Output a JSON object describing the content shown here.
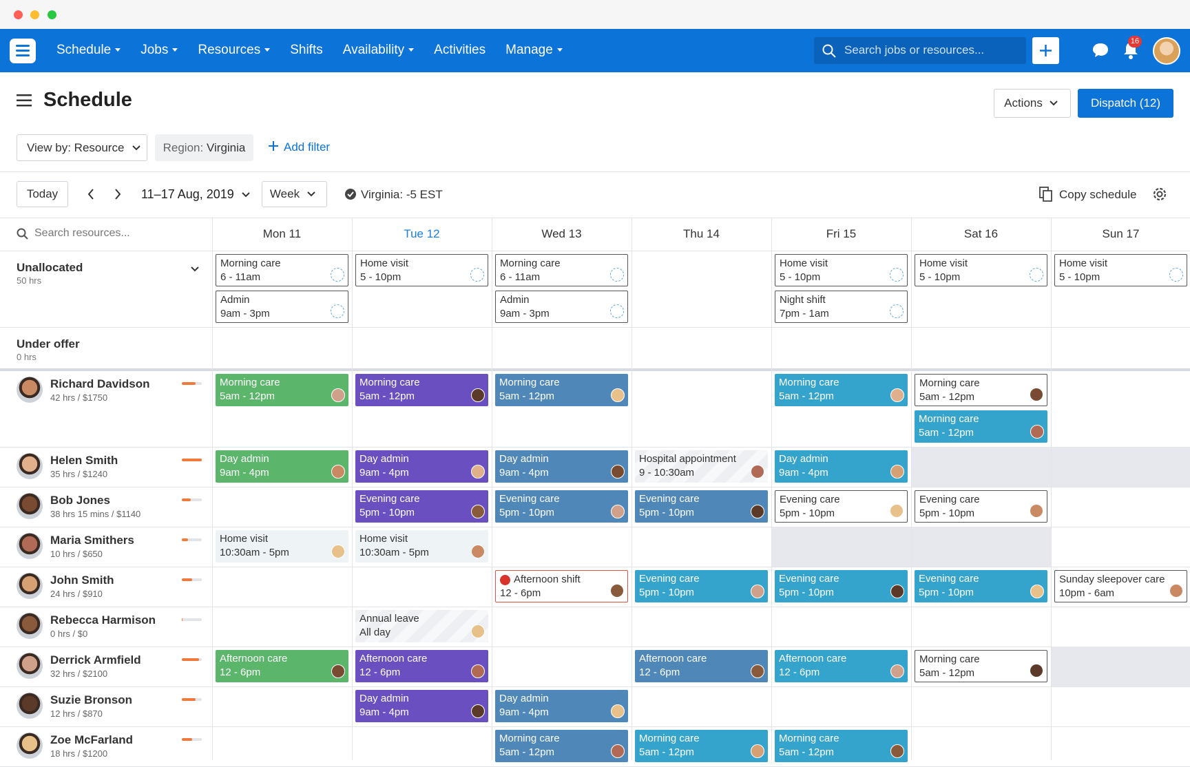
{
  "nav": {
    "items": [
      {
        "label": "Schedule",
        "dropdown": true
      },
      {
        "label": "Jobs",
        "dropdown": true
      },
      {
        "label": "Resources",
        "dropdown": true
      },
      {
        "label": "Shifts",
        "dropdown": false
      },
      {
        "label": "Availability",
        "dropdown": true
      },
      {
        "label": "Activities",
        "dropdown": false
      },
      {
        "label": "Manage",
        "dropdown": true
      }
    ],
    "search": "Search jobs or resources...",
    "notifications": 16
  },
  "header": {
    "title": "Schedule",
    "actions": "Actions",
    "dispatch": "Dispatch (12)"
  },
  "filters": {
    "view_by": "View by: Resource",
    "region_label": "Region:",
    "region": "Virginia",
    "add_filter": "Add filter"
  },
  "toolbar": {
    "today": "Today",
    "date_range": "11–17 Aug, 2019",
    "period": "Week",
    "timezone": "Virginia: -5 EST",
    "copy": "Copy schedule"
  },
  "grid": {
    "search": "Search resources...",
    "days": [
      "Mon 11",
      "Tue 12",
      "Wed 13",
      "Thu 14",
      "Fri 15",
      "Sat 16",
      "Sun 17"
    ],
    "today_index": 1,
    "groups": [
      {
        "name": "Unallocated",
        "hours": "50 hrs",
        "cells": [
          [
            {
              "title": "Morning care",
              "time": "6 - 11am",
              "style": "open"
            },
            {
              "title": "Admin",
              "time": "9am - 3pm",
              "style": "open"
            }
          ],
          [
            {
              "title": "Home visit",
              "time": "5 - 10pm",
              "style": "open"
            }
          ],
          [
            {
              "title": "Morning care",
              "time": "6 - 11am",
              "style": "open"
            },
            {
              "title": "Admin",
              "time": "9am - 3pm",
              "style": "open"
            }
          ],
          [],
          [
            {
              "title": "Home visit",
              "time": "5 - 10pm",
              "style": "open"
            },
            {
              "title": "Night shift",
              "time": "7pm - 1am",
              "style": "open"
            }
          ],
          [
            {
              "title": "Home visit",
              "time": "5 - 10pm",
              "style": "open"
            }
          ],
          [
            {
              "title": "Home visit",
              "time": "5 - 10pm",
              "style": "open"
            }
          ]
        ]
      },
      {
        "name": "Under offer",
        "hours": "0 hrs",
        "cells": [
          [],
          [],
          [],
          [],
          [],
          [],
          []
        ]
      }
    ],
    "resources": [
      {
        "name": "Richard Davidson",
        "hours": "42 hrs / $1750",
        "load": 70,
        "unavailable": [],
        "cells": [
          [
            {
              "title": "Morning care",
              "time": "5am - 12pm",
              "style": "green"
            }
          ],
          [
            {
              "title": "Morning care",
              "time": "5am - 12pm",
              "style": "purple"
            }
          ],
          [
            {
              "title": "Morning care",
              "time": "5am - 12pm",
              "style": "slate"
            }
          ],
          [],
          [
            {
              "title": "Morning care",
              "time": "5am - 12pm",
              "style": "teal"
            }
          ],
          [
            {
              "title": "Morning care",
              "time": "5am - 12pm",
              "style": "outline"
            },
            {
              "title": "Morning care",
              "time": "5am - 12pm",
              "style": "teal"
            }
          ],
          []
        ]
      },
      {
        "name": "Helen Smith",
        "hours": "35 hrs / $1240",
        "load": 100,
        "unavailable": [
          5,
          6
        ],
        "cells": [
          [
            {
              "title": "Day admin",
              "time": "9am - 4pm",
              "style": "green"
            }
          ],
          [
            {
              "title": "Day admin",
              "time": "9am - 4pm",
              "style": "purple"
            }
          ],
          [
            {
              "title": "Day admin",
              "time": "9am - 4pm",
              "style": "slate"
            }
          ],
          [
            {
              "title": "Hospital appointment",
              "time": "9 - 10:30am",
              "style": "leave"
            }
          ],
          [
            {
              "title": "Day admin",
              "time": "9am - 4pm",
              "style": "teal"
            }
          ],
          [],
          []
        ]
      },
      {
        "name": "Bob Jones",
        "hours": "38 hrs 15 mins / $1140",
        "load": 45,
        "unavailable": [],
        "cells": [
          [],
          [
            {
              "title": "Evening care",
              "time": "5pm - 10pm",
              "style": "purple"
            }
          ],
          [
            {
              "title": "Evening care",
              "time": "5pm - 10pm",
              "style": "slate"
            }
          ],
          [
            {
              "title": "Evening care",
              "time": "5pm - 10pm",
              "style": "slate"
            }
          ],
          [
            {
              "title": "Evening care",
              "time": "5pm - 10pm",
              "style": "outline"
            }
          ],
          [
            {
              "title": "Evening care",
              "time": "5pm - 10pm",
              "style": "outline"
            }
          ],
          []
        ]
      },
      {
        "name": "Maria Smithers",
        "hours": "10 hrs / $650",
        "load": 30,
        "unavailable": [
          4,
          5
        ],
        "cells": [
          [
            {
              "title": "Home visit",
              "time": "10:30am - 5pm",
              "style": "pending"
            }
          ],
          [
            {
              "title": "Home visit",
              "time": "10:30am - 5pm",
              "style": "pending"
            }
          ],
          [],
          [],
          [],
          [],
          []
        ]
      },
      {
        "name": "John Smith",
        "hours": "24 hrs / $910",
        "load": 50,
        "unavailable": [],
        "cells": [
          [],
          [],
          [
            {
              "title": "Afternoon shift",
              "time": "12 - 6pm",
              "style": "alert"
            }
          ],
          [
            {
              "title": "Evening care",
              "time": "5pm - 10pm",
              "style": "teal"
            }
          ],
          [
            {
              "title": "Evening care",
              "time": "5pm - 10pm",
              "style": "teal"
            }
          ],
          [
            {
              "title": "Evening care",
              "time": "5pm - 10pm",
              "style": "teal"
            }
          ],
          [
            {
              "title": "Sunday sleepover care",
              "time": "10pm - 6am",
              "style": "outline"
            }
          ]
        ]
      },
      {
        "name": "Rebecca Harmison",
        "hours": "0 hrs / $0",
        "load": 5,
        "unavailable": [],
        "cells": [
          [],
          [
            {
              "title": "Annual leave",
              "time": "All day",
              "style": "leave"
            }
          ],
          [],
          [],
          [],
          [],
          []
        ]
      },
      {
        "name": "Derrick Armfield",
        "hours": "32 hrs / $2100",
        "load": 85,
        "unavailable": [
          6
        ],
        "cells": [
          [
            {
              "title": "Afternoon care",
              "time": "12 - 6pm",
              "style": "green"
            }
          ],
          [
            {
              "title": "Afternoon care",
              "time": "12 - 6pm",
              "style": "purple"
            }
          ],
          [],
          [
            {
              "title": "Afternoon care",
              "time": "12 - 6pm",
              "style": "slate"
            }
          ],
          [
            {
              "title": "Afternoon care",
              "time": "12 - 6pm",
              "style": "teal"
            }
          ],
          [
            {
              "title": "Morning care",
              "time": "5am - 12pm",
              "style": "outline"
            }
          ],
          []
        ]
      },
      {
        "name": "Suzie Bronson",
        "hours": "12 hrs / $870",
        "load": 70,
        "unavailable": [],
        "cells": [
          [],
          [
            {
              "title": "Day admin",
              "time": "9am - 4pm",
              "style": "purple"
            }
          ],
          [
            {
              "title": "Day admin",
              "time": "9am - 4pm",
              "style": "slate"
            }
          ],
          [],
          [],
          [],
          []
        ]
      },
      {
        "name": "Zoe McFarland",
        "hours": "18 hrs / $1200",
        "load": 50,
        "unavailable": [],
        "cells": [
          [],
          [],
          [
            {
              "title": "Morning care",
              "time": "5am - 12pm",
              "style": "slate"
            }
          ],
          [
            {
              "title": "Morning care",
              "time": "5am - 12pm",
              "style": "teal"
            }
          ],
          [
            {
              "title": "Morning care",
              "time": "5am - 12pm",
              "style": "teal"
            }
          ],
          [],
          []
        ]
      }
    ]
  }
}
